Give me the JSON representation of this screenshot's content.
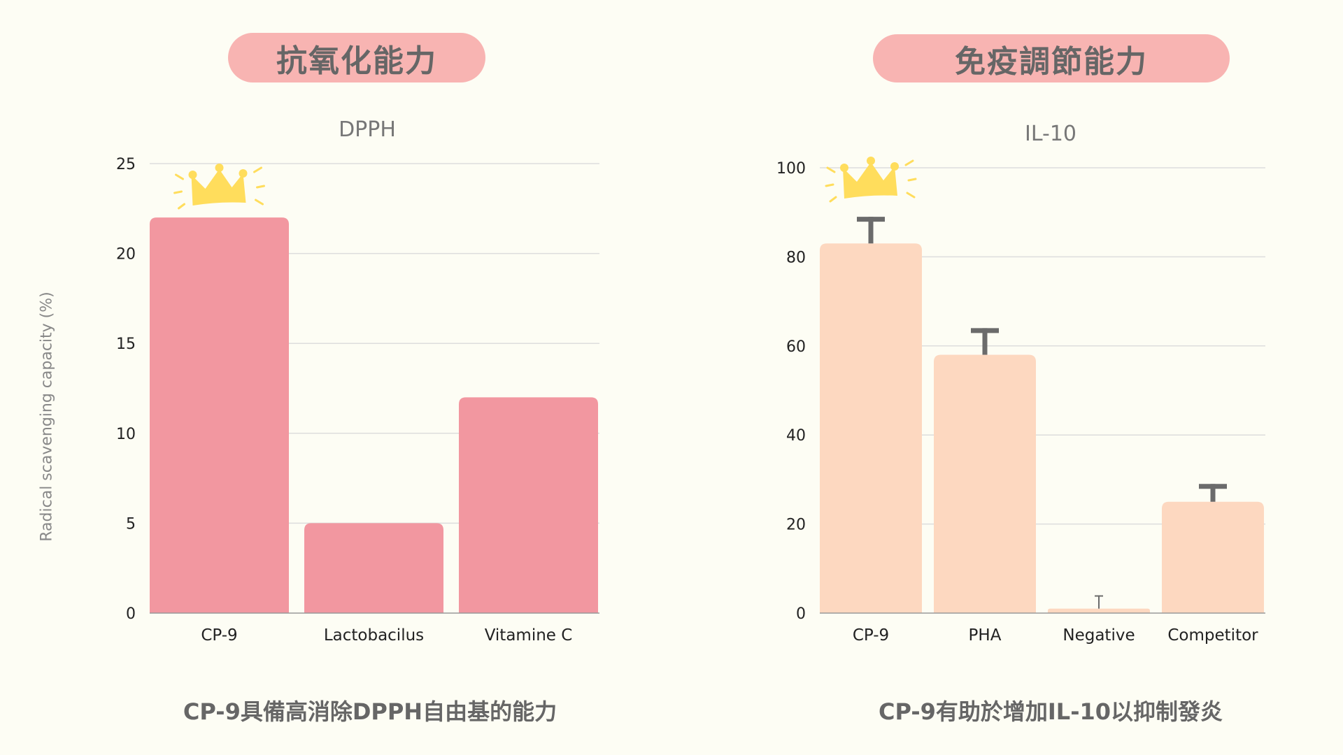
{
  "colors": {
    "background": "#fdfdf4",
    "pill": "#f8b4b2",
    "bar_left": "#f297a0",
    "bar_right": "#fdd8c0",
    "error": "#6b6b6b",
    "crown": "#ffdd5c",
    "grid": "#dddddd"
  },
  "left": {
    "heading": "抗氧化能力",
    "caption": "CP-9具備高消除DPPH自由基的能力"
  },
  "right": {
    "heading": "免疫調節能力",
    "caption": "CP-9有助於增加IL-10以抑制發炎"
  },
  "chart_data": [
    {
      "type": "bar",
      "title": "DPPH",
      "ylabel": "Radical scavenging capacity (%)",
      "xlabel": "",
      "categories": [
        "CP-9",
        "Lactobacilus",
        "Vitamine C"
      ],
      "values": [
        22,
        5,
        12
      ],
      "ylim": [
        0,
        25
      ],
      "yticks": [
        0,
        5,
        10,
        15,
        20,
        25
      ],
      "grid": true,
      "highlight": "CP-9"
    },
    {
      "type": "bar",
      "title": "IL-10",
      "ylabel": "",
      "xlabel": "",
      "categories": [
        "CP-9",
        "PHA",
        "Negative",
        "Competitor"
      ],
      "values": [
        83,
        58,
        1,
        25
      ],
      "error_upper": [
        89,
        64,
        4,
        29
      ],
      "ylim": [
        0,
        100
      ],
      "yticks": [
        0,
        20,
        40,
        60,
        80,
        100
      ],
      "grid": true,
      "highlight": "CP-9"
    }
  ]
}
